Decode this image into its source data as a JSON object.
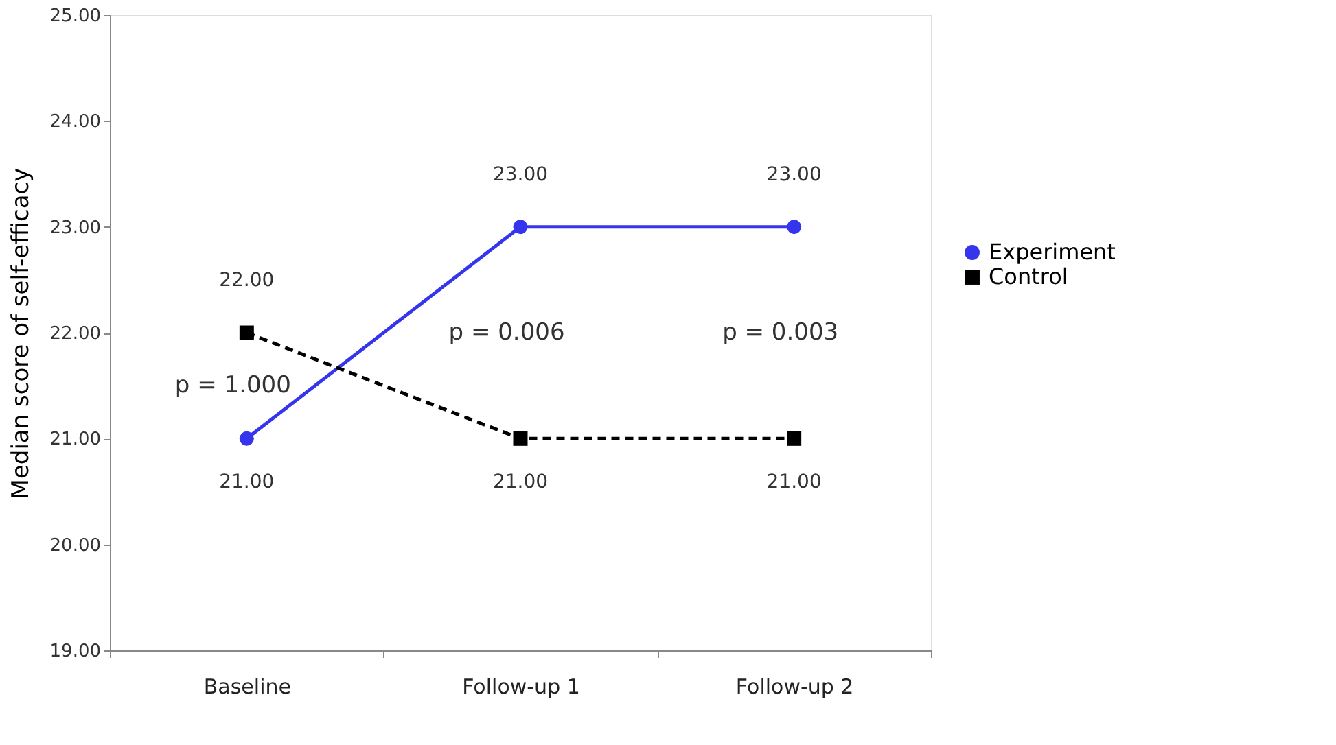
{
  "chart_data": {
    "type": "line",
    "ylabel": "Median score of self-efficacy",
    "categories": [
      "Baseline",
      "Follow-up 1",
      "Follow-up 2"
    ],
    "series": [
      {
        "name": "Experiment",
        "color": "#3535ee",
        "values": [
          21,
          23,
          23
        ],
        "value_labels": [
          "21.00",
          "23.00",
          "23.00"
        ],
        "marker": "circle",
        "line_style": "solid"
      },
      {
        "name": "Control",
        "color": "#000000",
        "values": [
          22,
          21,
          21
        ],
        "value_labels": [
          "22.00",
          "21.00",
          "21.00"
        ],
        "marker": "square",
        "line_style": "dashed"
      }
    ],
    "ylim": [
      19,
      25
    ],
    "yticks": [
      {
        "value": 19,
        "label": "19.00"
      },
      {
        "value": 20,
        "label": "20.00"
      },
      {
        "value": 21,
        "label": "21.00"
      },
      {
        "value": 22,
        "label": "22.00"
      },
      {
        "value": 23,
        "label": "23.00"
      },
      {
        "value": 24,
        "label": "24.00"
      },
      {
        "value": 25,
        "label": "25.00"
      }
    ],
    "annotations": [
      "p = 1.000",
      "p = 0.006",
      "p = 0.003"
    ],
    "grid": false,
    "legend": "right"
  }
}
